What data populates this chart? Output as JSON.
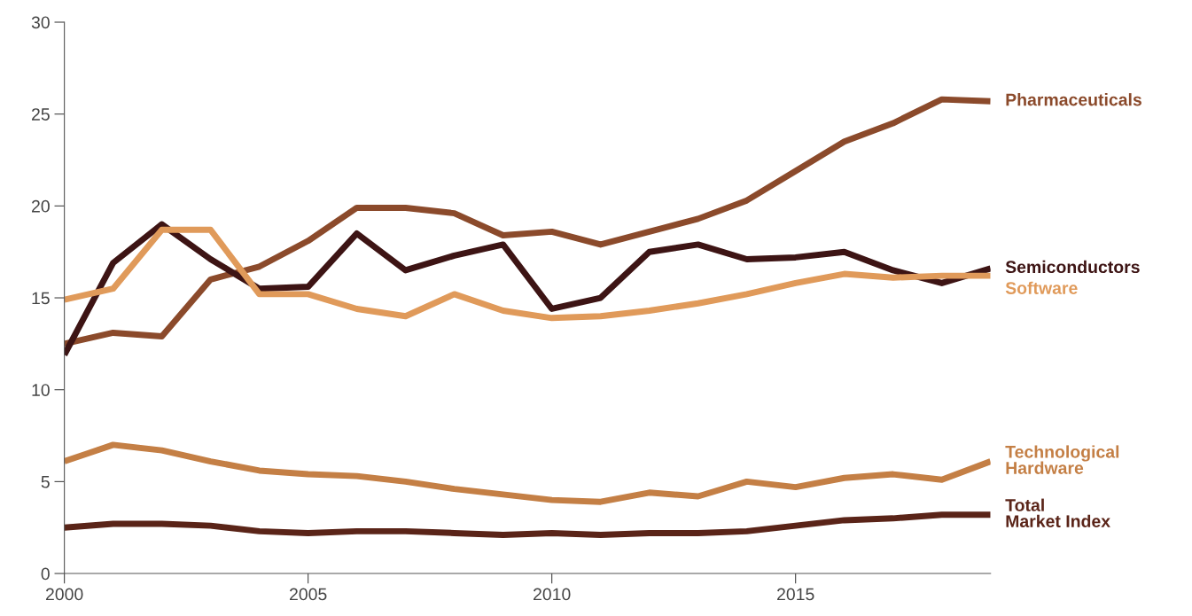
{
  "chart_data": {
    "type": "line",
    "x": [
      2000,
      2001,
      2002,
      2003,
      2004,
      2005,
      2006,
      2007,
      2008,
      2009,
      2010,
      2011,
      2012,
      2013,
      2014,
      2015,
      2016,
      2017,
      2018,
      2019
    ],
    "xlim": [
      2000,
      2019
    ],
    "xticks": [
      2000,
      2005,
      2010,
      2015
    ],
    "ylim": [
      0,
      30
    ],
    "yticks": [
      0,
      5,
      10,
      15,
      20,
      25,
      30
    ],
    "grid": false,
    "legend": false,
    "marker": "none",
    "line_style": "solid",
    "series": [
      {
        "name": "Pharmaceuticals",
        "color": "#8b4a2b",
        "values": [
          12.5,
          13.1,
          12.9,
          16.0,
          16.7,
          18.1,
          19.9,
          19.9,
          19.6,
          18.4,
          18.6,
          17.9,
          18.6,
          19.3,
          20.3,
          21.9,
          23.5,
          24.5,
          25.8,
          25.7
        ]
      },
      {
        "name": "Semiconductors",
        "color": "#3d1414",
        "values": [
          11.9,
          16.9,
          19.0,
          17.1,
          15.5,
          15.6,
          18.5,
          16.5,
          17.3,
          17.9,
          14.4,
          15.0,
          17.5,
          17.9,
          17.1,
          17.2,
          17.5,
          16.5,
          15.8,
          16.6
        ]
      },
      {
        "name": "Software",
        "color": "#e09a5a",
        "values": [
          14.9,
          15.5,
          18.7,
          18.7,
          15.2,
          15.2,
          14.4,
          14.0,
          15.2,
          14.3,
          13.9,
          14.0,
          14.3,
          14.7,
          15.2,
          15.8,
          16.3,
          16.1,
          16.2,
          16.2
        ]
      },
      {
        "name": "Technological\nHardware",
        "color": "#c47f45",
        "values": [
          6.1,
          7.0,
          6.7,
          6.1,
          5.6,
          5.4,
          5.3,
          5.0,
          4.6,
          4.3,
          4.0,
          3.9,
          4.4,
          4.2,
          5.0,
          4.7,
          5.2,
          5.4,
          5.1,
          6.1
        ]
      },
      {
        "name": "Total\nMarket Index",
        "color": "#5a2418",
        "values": [
          2.5,
          2.7,
          2.7,
          2.6,
          2.3,
          2.2,
          2.3,
          2.3,
          2.2,
          2.1,
          2.2,
          2.1,
          2.2,
          2.2,
          2.3,
          2.6,
          2.9,
          3.0,
          3.2,
          3.2
        ]
      }
    ]
  }
}
